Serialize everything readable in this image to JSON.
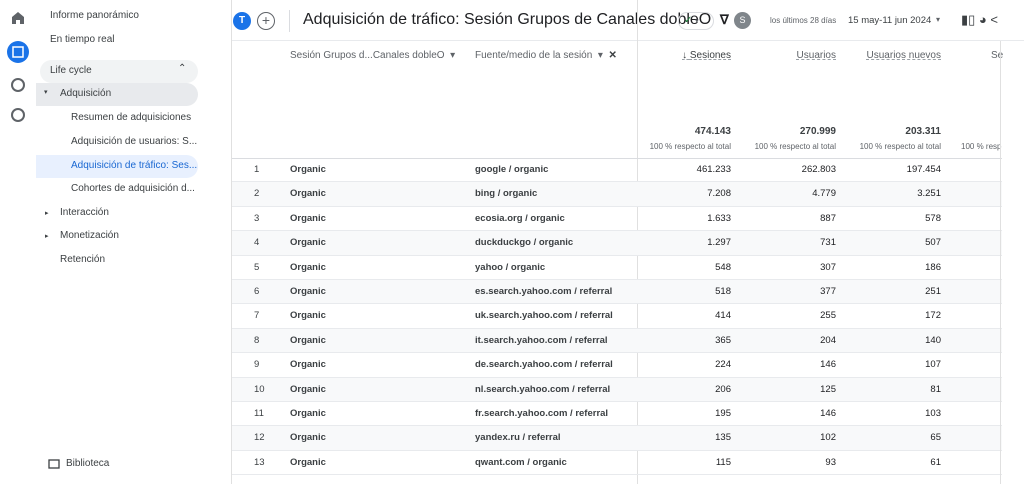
{
  "sidebar": {
    "top_items": [
      "Informe panorámico",
      "En tiempo real"
    ],
    "section": "Life cycle",
    "group": "Adquisición",
    "subitems": [
      "Resumen de adquisiciones",
      "Adquisición de usuarios: S...",
      "Adquisición de tráfico: Ses...",
      "Cohortes de adquisición d..."
    ],
    "collapsed": [
      "Interacción",
      "Monetización"
    ],
    "other": "Retención",
    "library": "Biblioteca"
  },
  "header": {
    "avatar": "T",
    "title": "Adquisición de tráfico: Sesión Grupos de Canales dobleO",
    "user_badge": "S",
    "date_label": "los últimos 28 días",
    "date_range": "15 may-11 jun 2024"
  },
  "table": {
    "columns": [
      "Sesión Grupos d...Canales dobleO",
      "Fuente/medio de la sesión",
      "Sesiones",
      "Usuarios",
      "Usuarios nuevos",
      "Se"
    ],
    "totals": [
      "474.143",
      "270.999",
      "203.311"
    ],
    "totals_note": "100 % respecto al total",
    "totals_note_cut": "100 % resp",
    "rows": [
      [
        "1",
        "Organic",
        "google / organic",
        "461.233",
        "262.803",
        "197.454"
      ],
      [
        "2",
        "Organic",
        "bing / organic",
        "7.208",
        "4.779",
        "3.251"
      ],
      [
        "3",
        "Organic",
        "ecosia.org / organic",
        "1.633",
        "887",
        "578"
      ],
      [
        "4",
        "Organic",
        "duckduckgo / organic",
        "1.297",
        "731",
        "507"
      ],
      [
        "5",
        "Organic",
        "yahoo / organic",
        "548",
        "307",
        "186"
      ],
      [
        "6",
        "Organic",
        "es.search.yahoo.com / referral",
        "518",
        "377",
        "251"
      ],
      [
        "7",
        "Organic",
        "uk.search.yahoo.com / referral",
        "414",
        "255",
        "172"
      ],
      [
        "8",
        "Organic",
        "it.search.yahoo.com / referral",
        "365",
        "204",
        "140"
      ],
      [
        "9",
        "Organic",
        "de.search.yahoo.com / referral",
        "224",
        "146",
        "107"
      ],
      [
        "10",
        "Organic",
        "nl.search.yahoo.com / referral",
        "206",
        "125",
        "81"
      ],
      [
        "11",
        "Organic",
        "fr.search.yahoo.com / referral",
        "195",
        "146",
        "103"
      ],
      [
        "12",
        "Organic",
        "yandex.ru / referral",
        "135",
        "102",
        "65"
      ],
      [
        "13",
        "Organic",
        "qwant.com / organic",
        "115",
        "93",
        "61"
      ]
    ]
  }
}
